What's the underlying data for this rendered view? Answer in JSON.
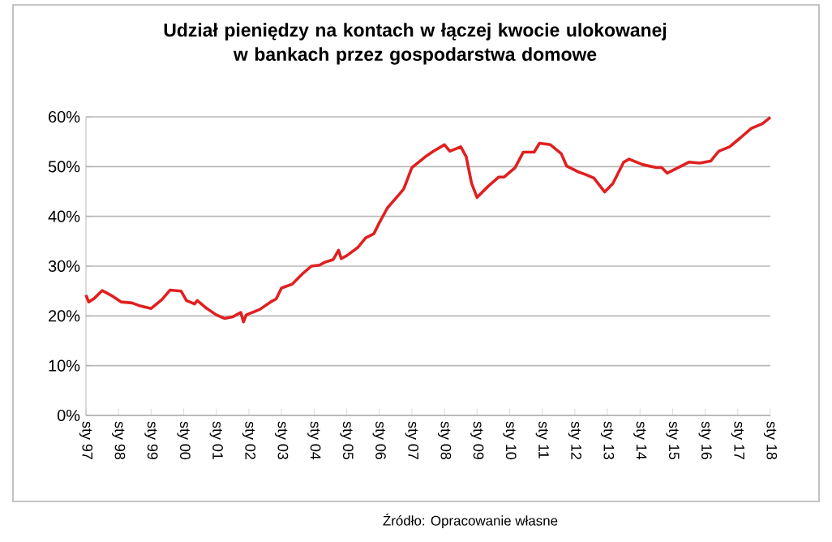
{
  "chart_data": {
    "type": "line",
    "title": "Udział  pieniędzy na kontach w łączej kwocie ulokowanej\nw bankach przez gospodarstwa domowe",
    "annotations": [
      "Źródło: Opracowanie własne"
    ],
    "x": [
      "1997-01",
      "1997-02",
      "1997-04",
      "1997-07",
      "1997-11",
      "1998-02",
      "1998-06",
      "1998-09",
      "1999-01",
      "1999-03",
      "1999-05",
      "1999-08",
      "1999-12",
      "2000-02",
      "2000-05",
      "2000-06",
      "2000-09",
      "2001-01",
      "2001-04",
      "2001-07",
      "2001-10",
      "2001-11",
      "2001-12",
      "2002-05",
      "2002-09",
      "2002-11",
      "2003-01",
      "2003-05",
      "2003-09",
      "2003-12",
      "2004-03",
      "2004-05",
      "2004-08",
      "2004-10",
      "2004-11",
      "2005-01",
      "2005-05",
      "2005-08",
      "2005-11",
      "2006-01",
      "2006-04",
      "2006-08",
      "2006-10",
      "2007-01",
      "2007-06",
      "2007-09",
      "2008-01",
      "2008-03",
      "2008-07",
      "2008-09",
      "2008-11",
      "2009-01",
      "2009-05",
      "2009-09",
      "2009-11",
      "2010-03",
      "2010-06",
      "2010-10",
      "2010-12",
      "2011-04",
      "2011-08",
      "2011-10",
      "2012-02",
      "2012-05",
      "2012-08",
      "2012-12",
      "2013-03",
      "2013-07",
      "2013-09",
      "2014-02",
      "2014-07",
      "2014-09",
      "2014-11",
      "2015-03",
      "2015-07",
      "2015-11",
      "2016-03",
      "2016-06",
      "2016-10",
      "2017-02",
      "2017-06",
      "2017-10",
      "2018-01"
    ],
    "series": [
      {
        "color": "#e02020",
        "values": [
          24.2,
          22.8,
          23.5,
          25.1,
          23.9,
          22.8,
          22.6,
          22.0,
          21.5,
          22.4,
          23.3,
          25.2,
          25.0,
          23.1,
          22.4,
          23.1,
          21.7,
          20.2,
          19.5,
          19.8,
          20.7,
          18.8,
          20.2,
          21.3,
          22.8,
          23.4,
          25.6,
          26.4,
          28.6,
          30.0,
          30.2,
          30.8,
          31.3,
          33.2,
          31.5,
          32.1,
          33.7,
          35.7,
          36.5,
          38.7,
          41.7,
          44.2,
          45.5,
          49.8,
          52.0,
          53.1,
          54.4,
          53.1,
          54.0,
          52.0,
          46.6,
          43.8,
          46.0,
          47.9,
          47.9,
          49.8,
          52.9,
          52.9,
          54.7,
          54.4,
          52.6,
          50.1,
          49.0,
          48.4,
          47.7,
          44.9,
          46.6,
          50.9,
          51.5,
          50.4,
          49.8,
          49.8,
          48.7,
          49.8,
          50.9,
          50.7,
          51.1,
          53.1,
          54.0,
          55.8,
          57.7,
          58.6,
          59.9
        ]
      }
    ],
    "xlim": [
      "1997-01",
      "2018-01"
    ],
    "xticks": [
      {
        "value": "1997-01",
        "label": "sty 97"
      },
      {
        "value": "1998-01",
        "label": "sty 98"
      },
      {
        "value": "1999-01",
        "label": "sty 99"
      },
      {
        "value": "2000-01",
        "label": "sty 00"
      },
      {
        "value": "2001-01",
        "label": "sty 01"
      },
      {
        "value": "2002-01",
        "label": "sty 02"
      },
      {
        "value": "2003-01",
        "label": "sty 03"
      },
      {
        "value": "2004-01",
        "label": "sty 04"
      },
      {
        "value": "2005-01",
        "label": "sty 05"
      },
      {
        "value": "2006-01",
        "label": "sty 06"
      },
      {
        "value": "2007-01",
        "label": "sty 07"
      },
      {
        "value": "2008-01",
        "label": "sty 08"
      },
      {
        "value": "2009-01",
        "label": "sty 09"
      },
      {
        "value": "2010-01",
        "label": "sty 10"
      },
      {
        "value": "2011-01",
        "label": "sty 11"
      },
      {
        "value": "2012-01",
        "label": "sty 12"
      },
      {
        "value": "2013-01",
        "label": "sty 13"
      },
      {
        "value": "2014-01",
        "label": "sty 14"
      },
      {
        "value": "2015-01",
        "label": "sty 15"
      },
      {
        "value": "2016-01",
        "label": "sty 16"
      },
      {
        "value": "2017-01",
        "label": "sty 17"
      },
      {
        "value": "2018-01",
        "label": "sty 18"
      }
    ],
    "ylim": [
      0,
      60
    ],
    "yticks": [
      {
        "value": 0,
        "label": "0%"
      },
      {
        "value": 10,
        "label": "10%"
      },
      {
        "value": 20,
        "label": "20%"
      },
      {
        "value": 30,
        "label": "30%"
      },
      {
        "value": 40,
        "label": "40%"
      },
      {
        "value": 50,
        "label": "50%"
      },
      {
        "value": 60,
        "label": "60%"
      }
    ],
    "grid": "y",
    "marker": "none",
    "line_style": "solid"
  }
}
